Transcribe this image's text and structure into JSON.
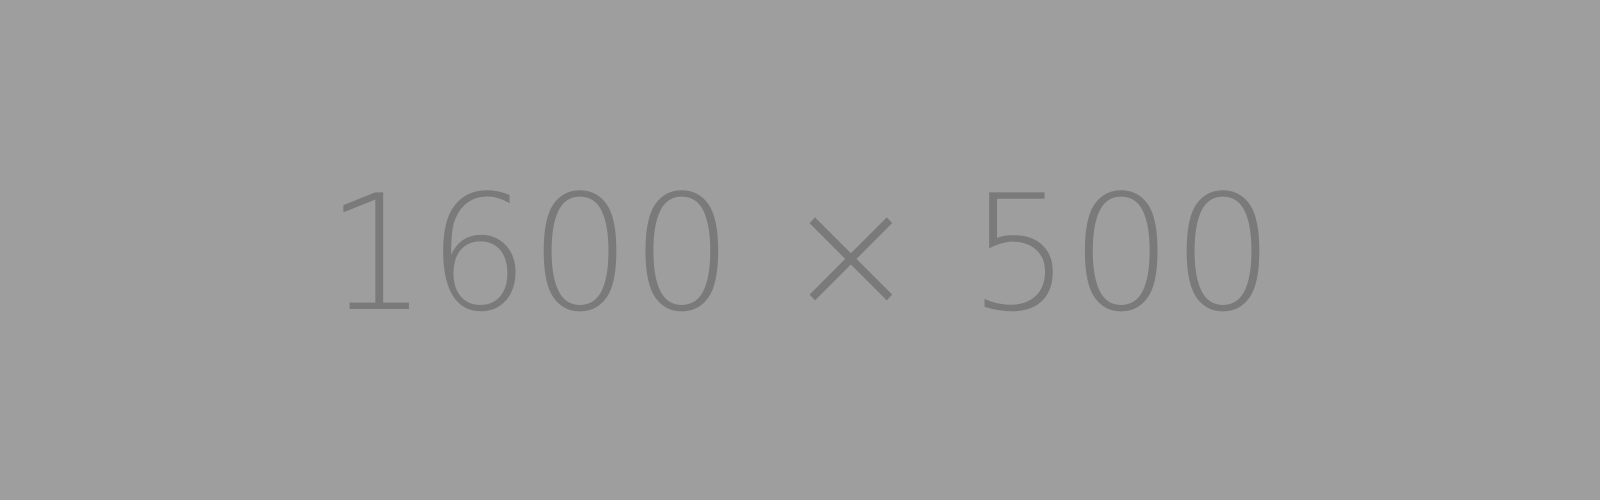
{
  "placeholder": {
    "label": "1600 × 500",
    "background_color": "#9e9e9e",
    "text_color": "#7a7a7a"
  }
}
